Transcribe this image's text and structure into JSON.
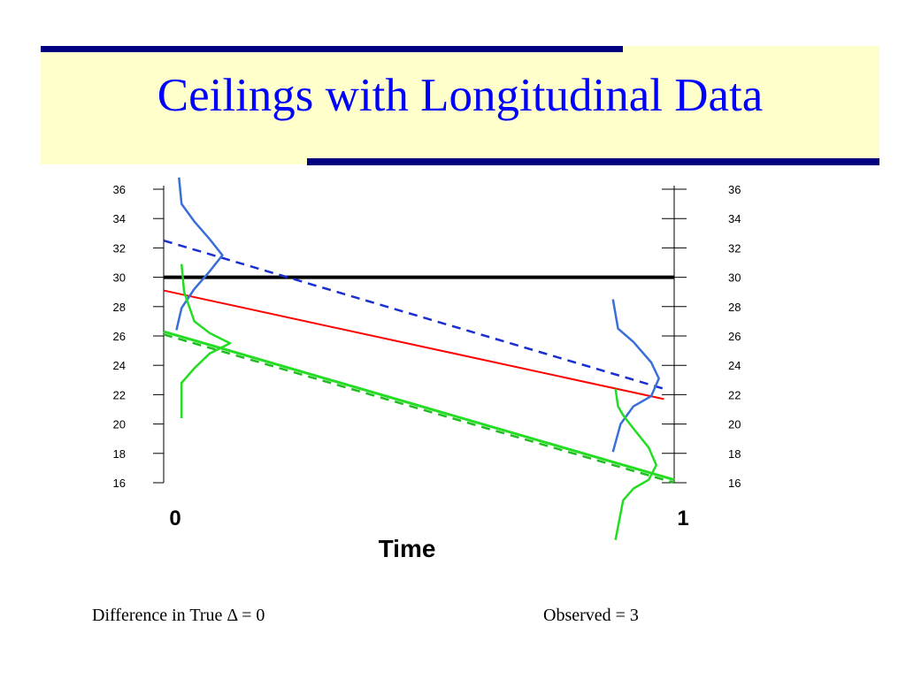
{
  "slide": {
    "title": "Ceilings with Longitudinal Data",
    "caption_left": "Difference in True Δ = 0",
    "caption_right": "Observed = 3"
  },
  "colors": {
    "title": "#0000ff",
    "band": "#ffffcc",
    "navy": "#000080",
    "ceiling": "#000000",
    "true_line": "#ff0000",
    "blue": "#3a6fd8",
    "blue_dashed": "#1a2fd0",
    "green": "#22dd22",
    "green_dashed": "#22bb22"
  },
  "chart_data": {
    "type": "line",
    "xlabel": "Time",
    "ylabel": "",
    "x_ticks": [
      0,
      1
    ],
    "x_tick_labels": [
      "0",
      "1"
    ],
    "ylim": [
      16,
      36
    ],
    "y_ticks": [
      16,
      18,
      20,
      22,
      24,
      26,
      28,
      30,
      32,
      34,
      36
    ],
    "y_tick_labels": [
      "16",
      "18",
      "20",
      "22",
      "24",
      "26",
      "28",
      "30",
      "32",
      "34",
      "36"
    ],
    "grid": false,
    "legend": "none",
    "ceiling": 30,
    "series": [
      {
        "style": "solid-black",
        "x": [
          0,
          1
        ],
        "y": [
          30,
          30
        ]
      },
      {
        "style": "solid-red",
        "x": [
          0,
          0.98
        ],
        "y": [
          29.1,
          21.7
        ]
      },
      {
        "style": "dashed-blue",
        "x": [
          0,
          0.98
        ],
        "y": [
          32.5,
          22.4
        ]
      },
      {
        "style": "solid-green",
        "x": [
          0,
          1
        ],
        "y": [
          26.3,
          16.2
        ]
      },
      {
        "style": "dashed-green",
        "x": [
          0,
          1
        ],
        "y": [
          26.1,
          16.0
        ]
      }
    ],
    "distributions": [
      {
        "style": "blue",
        "at_x": 0,
        "mean": 31.5,
        "points": [
          [
            0.03,
            36.8
          ],
          [
            0.035,
            35
          ],
          [
            0.06,
            33.8
          ],
          [
            0.09,
            32.6
          ],
          [
            0.115,
            31.5
          ],
          [
            0.09,
            30.4
          ],
          [
            0.06,
            29.2
          ],
          [
            0.035,
            27.9
          ],
          [
            0.025,
            26.4
          ]
        ]
      },
      {
        "style": "green",
        "at_x": 0,
        "mean": 25.5,
        "points": [
          [
            0.035,
            30.9
          ],
          [
            0.04,
            29
          ],
          [
            0.05,
            28
          ],
          [
            0.06,
            27
          ],
          [
            0.09,
            26.2
          ],
          [
            0.13,
            25.5
          ],
          [
            0.09,
            24.8
          ],
          [
            0.06,
            23.8
          ],
          [
            0.035,
            22.8
          ],
          [
            0.035,
            20.4
          ]
        ]
      },
      {
        "style": "blue",
        "at_x": 0.95,
        "mean": 23.1,
        "points": [
          [
            0.88,
            28.5
          ],
          [
            0.89,
            26.5
          ],
          [
            0.92,
            25.6
          ],
          [
            0.955,
            24.2
          ],
          [
            0.97,
            23.1
          ],
          [
            0.955,
            21.9
          ],
          [
            0.92,
            21.2
          ],
          [
            0.895,
            20
          ],
          [
            0.88,
            18.1
          ]
        ]
      },
      {
        "style": "green",
        "at_x": 0.95,
        "mean": 17.2,
        "points": [
          [
            0.885,
            22.4
          ],
          [
            0.89,
            21.2
          ],
          [
            0.9,
            20.6
          ],
          [
            0.92,
            19.7
          ],
          [
            0.95,
            18.4
          ],
          [
            0.965,
            17.2
          ],
          [
            0.95,
            16.2
          ],
          [
            0.92,
            15.6
          ],
          [
            0.9,
            14.8
          ],
          [
            0.885,
            12.1
          ]
        ]
      }
    ]
  }
}
